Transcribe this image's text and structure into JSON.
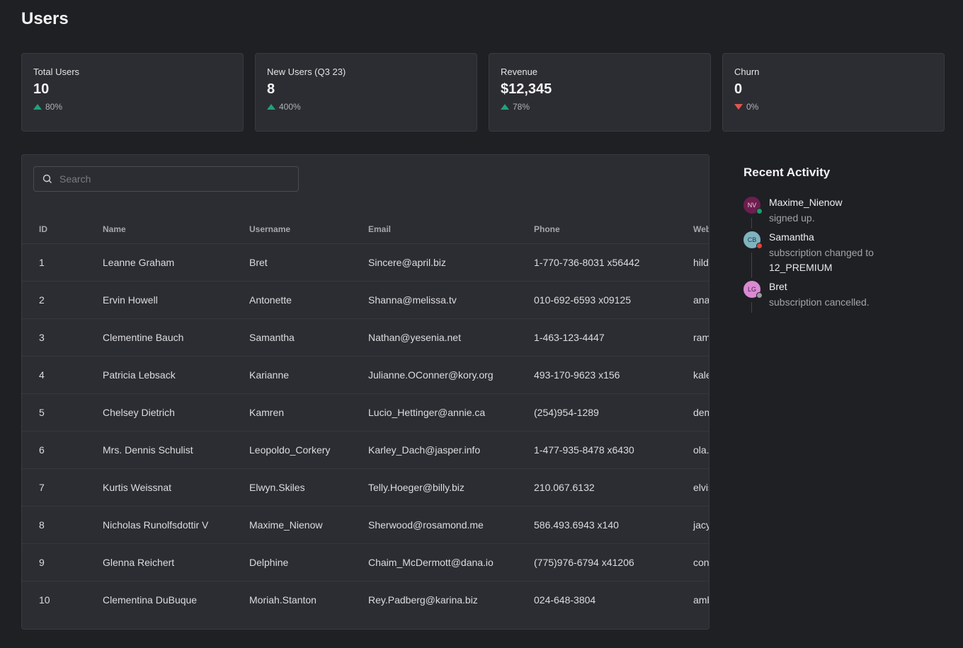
{
  "page": {
    "title": "Users"
  },
  "stats": [
    {
      "label": "Total Users",
      "value": "10",
      "change": "80%",
      "direction": "up"
    },
    {
      "label": "New Users (Q3 23)",
      "value": "8",
      "change": "400%",
      "direction": "up"
    },
    {
      "label": "Revenue",
      "value": "$12,345",
      "change": "78%",
      "direction": "up"
    },
    {
      "label": "Churn",
      "value": "0",
      "change": "0%",
      "direction": "down"
    }
  ],
  "colors": {
    "up": "#1fa27a",
    "down": "#e0564f"
  },
  "search": {
    "placeholder": "Search",
    "value": ""
  },
  "table": {
    "columns": [
      "ID",
      "Name",
      "Username",
      "Email",
      "Phone",
      "Website"
    ],
    "rows": [
      [
        "1",
        "Leanne Graham",
        "Bret",
        "Sincere@april.biz",
        "1-770-736-8031 x56442",
        "hildegard.org"
      ],
      [
        "2",
        "Ervin Howell",
        "Antonette",
        "Shanna@melissa.tv",
        "010-692-6593 x09125",
        "anastasia.net"
      ],
      [
        "3",
        "Clementine Bauch",
        "Samantha",
        "Nathan@yesenia.net",
        "1-463-123-4447",
        "ramiro.info"
      ],
      [
        "4",
        "Patricia Lebsack",
        "Karianne",
        "Julianne.OConner@kory.org",
        "493-170-9623 x156",
        "kale.biz"
      ],
      [
        "5",
        "Chelsey Dietrich",
        "Kamren",
        "Lucio_Hettinger@annie.ca",
        "(254)954-1289",
        "demarco.info"
      ],
      [
        "6",
        "Mrs. Dennis Schulist",
        "Leopoldo_Corkery",
        "Karley_Dach@jasper.info",
        "1-477-935-8478 x6430",
        "ola.org"
      ],
      [
        "7",
        "Kurtis Weissnat",
        "Elwyn.Skiles",
        "Telly.Hoeger@billy.biz",
        "210.067.6132",
        "elvis.io"
      ],
      [
        "8",
        "Nicholas Runolfsdottir V",
        "Maxime_Nienow",
        "Sherwood@rosamond.me",
        "586.493.6943 x140",
        "jacynthe.com"
      ],
      [
        "9",
        "Glenna Reichert",
        "Delphine",
        "Chaim_McDermott@dana.io",
        "(775)976-6794 x41206",
        "conrad.com"
      ],
      [
        "10",
        "Clementina DuBuque",
        "Moriah.Stanton",
        "Rey.Padberg@karina.biz",
        "024-648-3804",
        "ambrose.net"
      ]
    ]
  },
  "activity": {
    "title": "Recent Activity",
    "items": [
      {
        "initials": "NV",
        "name": "Maxime_Nienow",
        "text": "signed up.",
        "extra": "",
        "avatar_color": "#6e1d4f",
        "avatar_text": "#f0d0e0",
        "status_color": "#16a06a"
      },
      {
        "initials": "CB",
        "name": "Samantha",
        "text": "subscription changed to",
        "extra": "12_PREMIUM",
        "avatar_color": "#7fb3bf",
        "avatar_text": "#1f3a40",
        "status_color": "#e0443a"
      },
      {
        "initials": "LG",
        "name": "Bret",
        "text": "subscription cancelled.",
        "extra": "",
        "avatar_color": "#d98ad3",
        "avatar_text": "#4a1f45",
        "status_color": "#9a9a9e"
      }
    ]
  }
}
